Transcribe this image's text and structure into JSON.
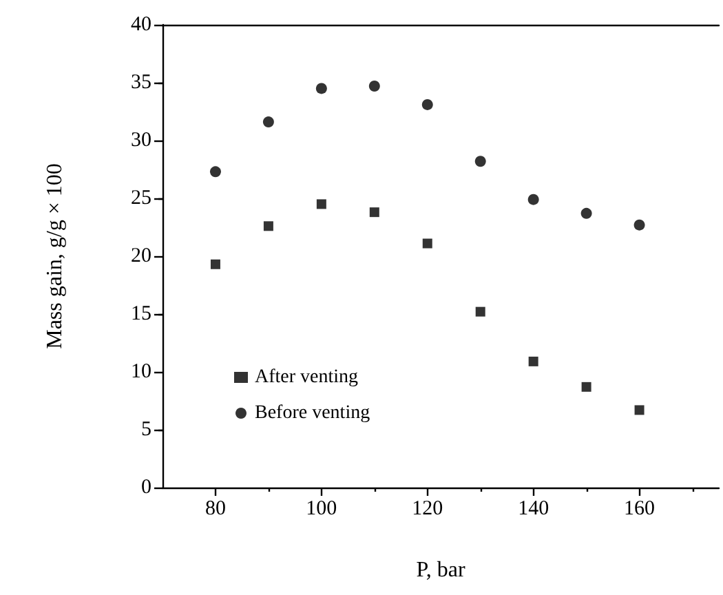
{
  "chart_data": {
    "type": "scatter",
    "xlabel": "P, bar",
    "ylabel": "Mass gain, g/g × 100",
    "x": [
      80,
      90,
      100,
      110,
      120,
      130,
      140,
      150,
      160
    ],
    "series": [
      {
        "name": "After venting",
        "color": "#000000",
        "marker": "square",
        "values": [
          19.3,
          22.6,
          24.5,
          23.8,
          21.1,
          15.2,
          10.9,
          8.7,
          6.7
        ]
      },
      {
        "name": "Before venting",
        "color": "#000000",
        "marker": "circle",
        "values": [
          27.3,
          31.6,
          34.5,
          34.7,
          33.1,
          28.2,
          24.9,
          23.7,
          22.7
        ]
      }
    ],
    "xlim": [
      70,
      175
    ],
    "xticks": [
      80,
      100,
      120,
      140,
      160
    ],
    "ylim": [
      0,
      40
    ],
    "yticks": [
      0,
      5,
      10,
      15,
      20,
      25,
      30,
      35,
      40
    ],
    "grid": false,
    "legend": "bottom left"
  }
}
